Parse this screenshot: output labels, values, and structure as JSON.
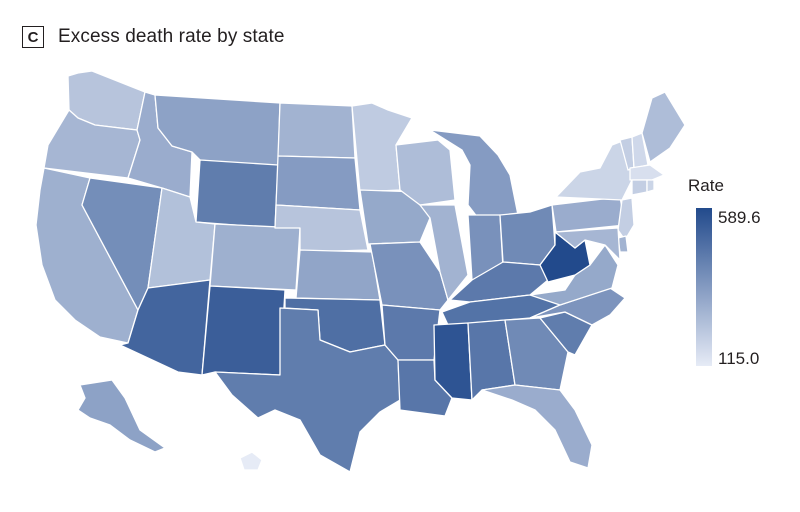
{
  "panel": {
    "label": "C",
    "title": "Excess death rate by state"
  },
  "legend": {
    "title": "Rate",
    "max_label": "589.6",
    "min_label": "115.0",
    "max": 589.6,
    "min": 115.0,
    "color_low": "#e6ebf6",
    "color_high": "#224a8c"
  },
  "map": {
    "regions": [
      {
        "id": "WA",
        "value": 230
      },
      {
        "id": "OR",
        "value": 270
      },
      {
        "id": "CA",
        "value": 290
      },
      {
        "id": "NV",
        "value": 390
      },
      {
        "id": "ID",
        "value": 300
      },
      {
        "id": "MT",
        "value": 330
      },
      {
        "id": "WY",
        "value": 440
      },
      {
        "id": "UT",
        "value": 240
      },
      {
        "id": "AZ",
        "value": 510
      },
      {
        "id": "CO",
        "value": 290
      },
      {
        "id": "NM",
        "value": 530
      },
      {
        "id": "ND",
        "value": 280
      },
      {
        "id": "SD",
        "value": 350
      },
      {
        "id": "NE",
        "value": 230
      },
      {
        "id": "KS",
        "value": 320
      },
      {
        "id": "OK",
        "value": 480
      },
      {
        "id": "TX",
        "value": 440
      },
      {
        "id": "MN",
        "value": 210
      },
      {
        "id": "IA",
        "value": 310
      },
      {
        "id": "MO",
        "value": 380
      },
      {
        "id": "AR",
        "value": 450
      },
      {
        "id": "LA",
        "value": 460
      },
      {
        "id": "WI",
        "value": 250
      },
      {
        "id": "IL",
        "value": 280
      },
      {
        "id": "MI",
        "value": 350
      },
      {
        "id": "IN",
        "value": 380
      },
      {
        "id": "OH",
        "value": 400
      },
      {
        "id": "KY",
        "value": 450
      },
      {
        "id": "TN",
        "value": 470
      },
      {
        "id": "MS",
        "value": 560
      },
      {
        "id": "AL",
        "value": 460
      },
      {
        "id": "GA",
        "value": 400
      },
      {
        "id": "FL",
        "value": 300
      },
      {
        "id": "SC",
        "value": 440
      },
      {
        "id": "NC",
        "value": 370
      },
      {
        "id": "VA",
        "value": 310
      },
      {
        "id": "WV",
        "value": 589.6
      },
      {
        "id": "PA",
        "value": 300
      },
      {
        "id": "NY",
        "value": 180
      },
      {
        "id": "VT",
        "value": 200
      },
      {
        "id": "NH",
        "value": 170
      },
      {
        "id": "ME",
        "value": 250
      },
      {
        "id": "MA",
        "value": 150
      },
      {
        "id": "CT",
        "value": 200
      },
      {
        "id": "RI",
        "value": 180
      },
      {
        "id": "NJ",
        "value": 200
      },
      {
        "id": "DE",
        "value": 280
      },
      {
        "id": "MD",
        "value": 270
      },
      {
        "id": "AK",
        "value": 330
      },
      {
        "id": "HI",
        "value": 115
      }
    ]
  }
}
